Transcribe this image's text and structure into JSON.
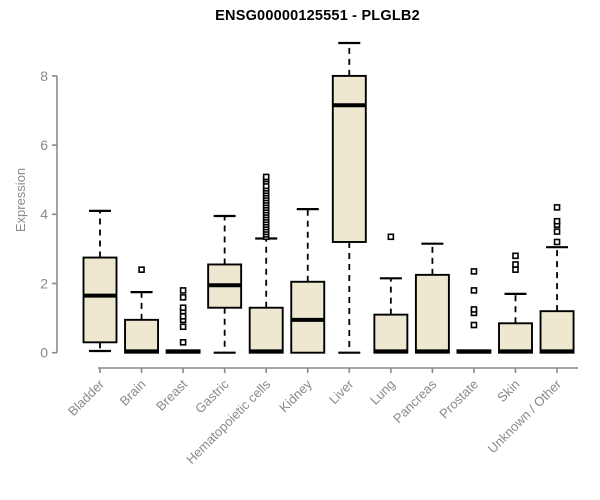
{
  "title": "ENSG00000125551 - PLGLB2",
  "chart_data": {
    "type": "boxplot",
    "title": "ENSG00000125551 - PLGLB2",
    "xlabel": "",
    "ylabel": "Expression",
    "ylim": [
      0,
      9.1
    ],
    "yticks": [
      0,
      2,
      4,
      6,
      8
    ],
    "grid": false,
    "legend": "none",
    "colors": {
      "box_fill": "#EDE8CF",
      "box_stroke": "#000000",
      "median": "#000000",
      "whisker": "#000000",
      "axis": "#8a8a8a",
      "tick_label": "#8a8a8a",
      "title_text": "#000000"
    },
    "categories": [
      "Bladder",
      "Brain",
      "Breast",
      "Gastric",
      "Hematopoietic cells",
      "Kidney",
      "Liver",
      "Lung",
      "Pancreas",
      "Prostate",
      "Skin",
      "Unknown / Other"
    ],
    "series": [
      {
        "name": "Bladder",
        "low": 0.05,
        "q1": 0.3,
        "median": 1.65,
        "q3": 2.75,
        "high": 4.1,
        "outliers": []
      },
      {
        "name": "Brain",
        "low": 0,
        "q1": 0,
        "median": 0.04,
        "q3": 0.95,
        "high": 1.75,
        "outliers": [
          2.4
        ]
      },
      {
        "name": "Breast",
        "low": 0,
        "q1": 0,
        "median": 0.03,
        "q3": 0.07,
        "high": 0.07,
        "outliers": [
          0.3,
          0.75,
          0.95,
          1.05,
          1.2,
          1.3,
          1.6,
          1.8
        ]
      },
      {
        "name": "Gastric",
        "low": 0,
        "q1": 1.3,
        "median": 1.95,
        "q3": 2.55,
        "high": 3.95,
        "outliers": []
      },
      {
        "name": "Hematopoietic cells",
        "low": 0,
        "q1": 0,
        "median": 0.04,
        "q3": 1.3,
        "high": 3.3,
        "outliers": [
          3.35,
          3.42,
          3.49,
          3.56,
          3.63,
          3.7,
          3.77,
          3.84,
          3.91,
          3.98,
          4.05,
          4.12,
          4.19,
          4.26,
          4.33,
          4.4,
          4.47,
          4.54,
          4.61,
          4.68,
          4.75,
          4.82,
          4.95,
          5.02,
          5.08
        ]
      },
      {
        "name": "Kidney",
        "low": 0,
        "q1": 0,
        "median": 0.95,
        "q3": 2.05,
        "high": 4.15,
        "outliers": []
      },
      {
        "name": "Liver",
        "low": 0,
        "q1": 3.2,
        "median": 7.15,
        "q3": 8.0,
        "high": 8.95,
        "outliers": []
      },
      {
        "name": "Lung",
        "low": 0,
        "q1": 0,
        "median": 0.04,
        "q3": 1.1,
        "high": 2.15,
        "outliers": [
          3.35
        ]
      },
      {
        "name": "Pancreas",
        "low": 0,
        "q1": 0,
        "median": 0.04,
        "q3": 2.25,
        "high": 3.15,
        "outliers": []
      },
      {
        "name": "Prostate",
        "low": 0,
        "q1": 0,
        "median": 0.03,
        "q3": 0.07,
        "high": 0.07,
        "outliers": [
          0.8,
          1.15,
          1.25,
          1.8,
          2.35
        ]
      },
      {
        "name": "Skin",
        "low": 0,
        "q1": 0,
        "median": 0.04,
        "q3": 0.85,
        "high": 1.7,
        "outliers": [
          2.4,
          2.55,
          2.8
        ]
      },
      {
        "name": "Unknown / Other",
        "low": 0,
        "q1": 0,
        "median": 0.04,
        "q3": 1.2,
        "high": 3.05,
        "outliers": [
          3.2,
          3.5,
          3.7,
          3.8,
          4.2
        ]
      }
    ]
  }
}
